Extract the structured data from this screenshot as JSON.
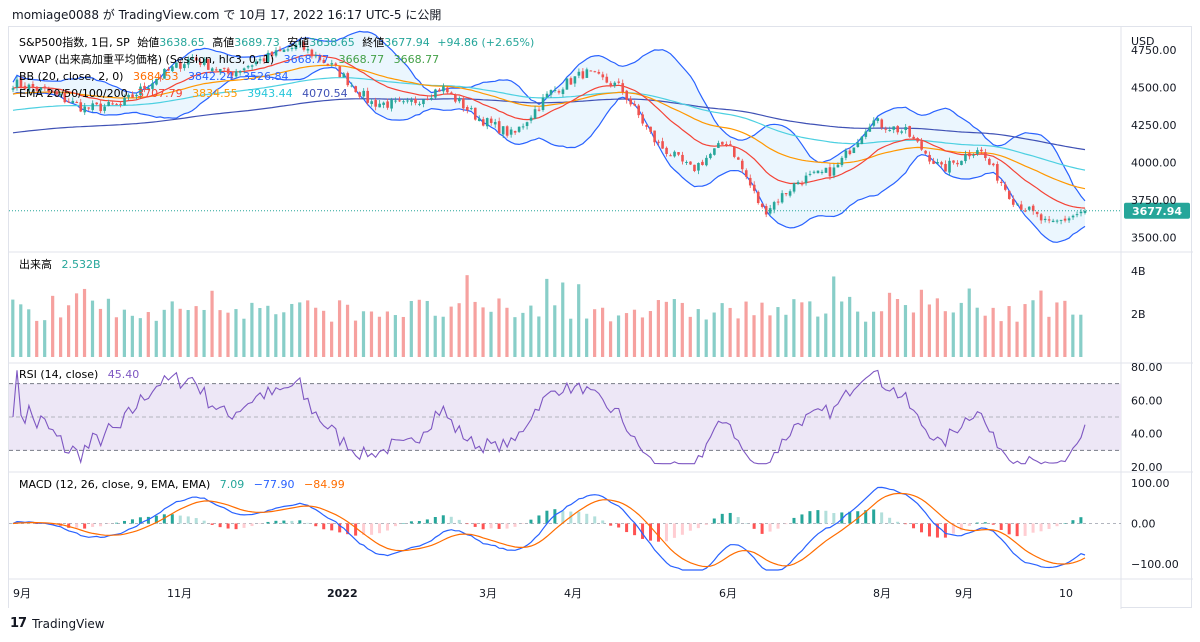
{
  "header": {
    "text": "momiage0088 が TradingView.com で 10月 17, 2022 16:17 UTC-5 に公開"
  },
  "footer": {
    "logo": "17",
    "text": "TradingView"
  },
  "price_axis": {
    "unit": "USD",
    "ticks": [
      "4750.00",
      "4500.00",
      "4250.00",
      "4000.00",
      "3750.00",
      "3500.00"
    ],
    "last_price_label": "3677.94"
  },
  "legend": {
    "main": {
      "prefix": "S&P500指数, 1日, SP",
      "o_label": "始値",
      "o": "3638.65",
      "h_label": "高値",
      "h": "3689.73",
      "l_label": "安値",
      "l": "3638.65",
      "c_label": "終値",
      "c": "3677.94",
      "chg": "+94.86 (+2.65%)"
    },
    "vwap": {
      "label": "VWAP (出来高加重平均価格) (Session, hlc3, 0, 1)",
      "v1": "3668.77",
      "v2": "3668.77",
      "v3": "3668.77"
    },
    "bb": {
      "label": "BB (20, close, 2, 0)",
      "v1": "3684.53",
      "v2": "3842.24",
      "v3": "3526.84"
    },
    "ema": {
      "label": "EMA 20/50/100/200",
      "v1": "3707.79",
      "v2": "3834.55",
      "v3": "3943.44",
      "v4": "4070.54"
    },
    "volume": {
      "label": "出来高",
      "value": "2.532B"
    },
    "rsi": {
      "label": "RSI (14, close)",
      "value": "45.40"
    },
    "macd": {
      "label": "MACD (12, 26, close, 9, EMA, EMA)",
      "v1": "7.09",
      "v2": "−77.90",
      "v3": "−84.99"
    }
  },
  "volume_axis": {
    "ticks": [
      "4B",
      "2B"
    ]
  },
  "rsi_axis": {
    "ticks": [
      "80.00",
      "60.00",
      "40.00",
      "20.00"
    ]
  },
  "macd_axis": {
    "ticks": [
      "100.00",
      "0.00",
      "−100.00"
    ]
  },
  "time_axis": {
    "labels": [
      "9月",
      "11月",
      "2022",
      "3月",
      "4月",
      "6月",
      "8月",
      "9月",
      "10"
    ]
  },
  "colors": {
    "up": "#26a69a",
    "down": "#ef5350",
    "bb": "#2962ff",
    "bb_fill": "#e3f2fd",
    "ema20": "#f44336",
    "ema50": "#ff9800",
    "ema100": "#4dd0e1",
    "ema200": "#3f51b5",
    "rsi": "#7e57c2",
    "rsi_band": "#ede7f6",
    "macd": "#2962ff",
    "signal": "#ff6d00"
  },
  "chart_data": {
    "type": "candlestick",
    "title": "S&P500指数, 1日, SP",
    "ylim": [
      3450,
      4850
    ],
    "x_ticks": [
      "9月",
      "11月",
      "2022",
      "3月",
      "4月",
      "6月",
      "8月",
      "9月",
      "10"
    ],
    "close_path": [
      {
        "t": "9月",
        "close": 4530
      },
      {
        "t": "",
        "close": 4470
      },
      {
        "t": "",
        "close": 4360
      },
      {
        "t": "",
        "close": 4380
      },
      {
        "t": "11月",
        "close": 4560
      },
      {
        "t": "",
        "close": 4700
      },
      {
        "t": "",
        "close": 4590
      },
      {
        "t": "",
        "close": 4690
      },
      {
        "t": "2022",
        "close": 4780
      },
      {
        "t": "",
        "close": 4630
      },
      {
        "t": "",
        "close": 4400
      },
      {
        "t": "",
        "close": 4380
      },
      {
        "t": "",
        "close": 4500
      },
      {
        "t": "",
        "close": 4300
      },
      {
        "t": "3月",
        "close": 4180
      },
      {
        "t": "",
        "close": 4460
      },
      {
        "t": "4月",
        "close": 4600
      },
      {
        "t": "",
        "close": 4500
      },
      {
        "t": "",
        "close": 4130
      },
      {
        "t": "",
        "close": 3950
      },
      {
        "t": "6月",
        "close": 4150
      },
      {
        "t": "",
        "close": 3670
      },
      {
        "t": "",
        "close": 3880
      },
      {
        "t": "",
        "close": 3950
      },
      {
        "t": "8月",
        "close": 4280
      },
      {
        "t": "",
        "close": 4200
      },
      {
        "t": "9月",
        "close": 3950
      },
      {
        "t": "",
        "close": 4100
      },
      {
        "t": "",
        "close": 3750
      },
      {
        "t": "10",
        "close": 3580
      },
      {
        "t": "",
        "close": 3677.94
      }
    ],
    "volume_ylim": [
      0,
      5
    ],
    "volume_unit": "B",
    "last_volume": 2.532,
    "rsi": {
      "ylim": [
        20,
        80
      ],
      "bands": [
        30,
        50,
        70
      ],
      "last": 45.4
    },
    "macd": {
      "ylim": [
        -120,
        120
      ],
      "macd_last": -77.9,
      "signal_last": -84.99,
      "hist_last": 7.09
    }
  }
}
